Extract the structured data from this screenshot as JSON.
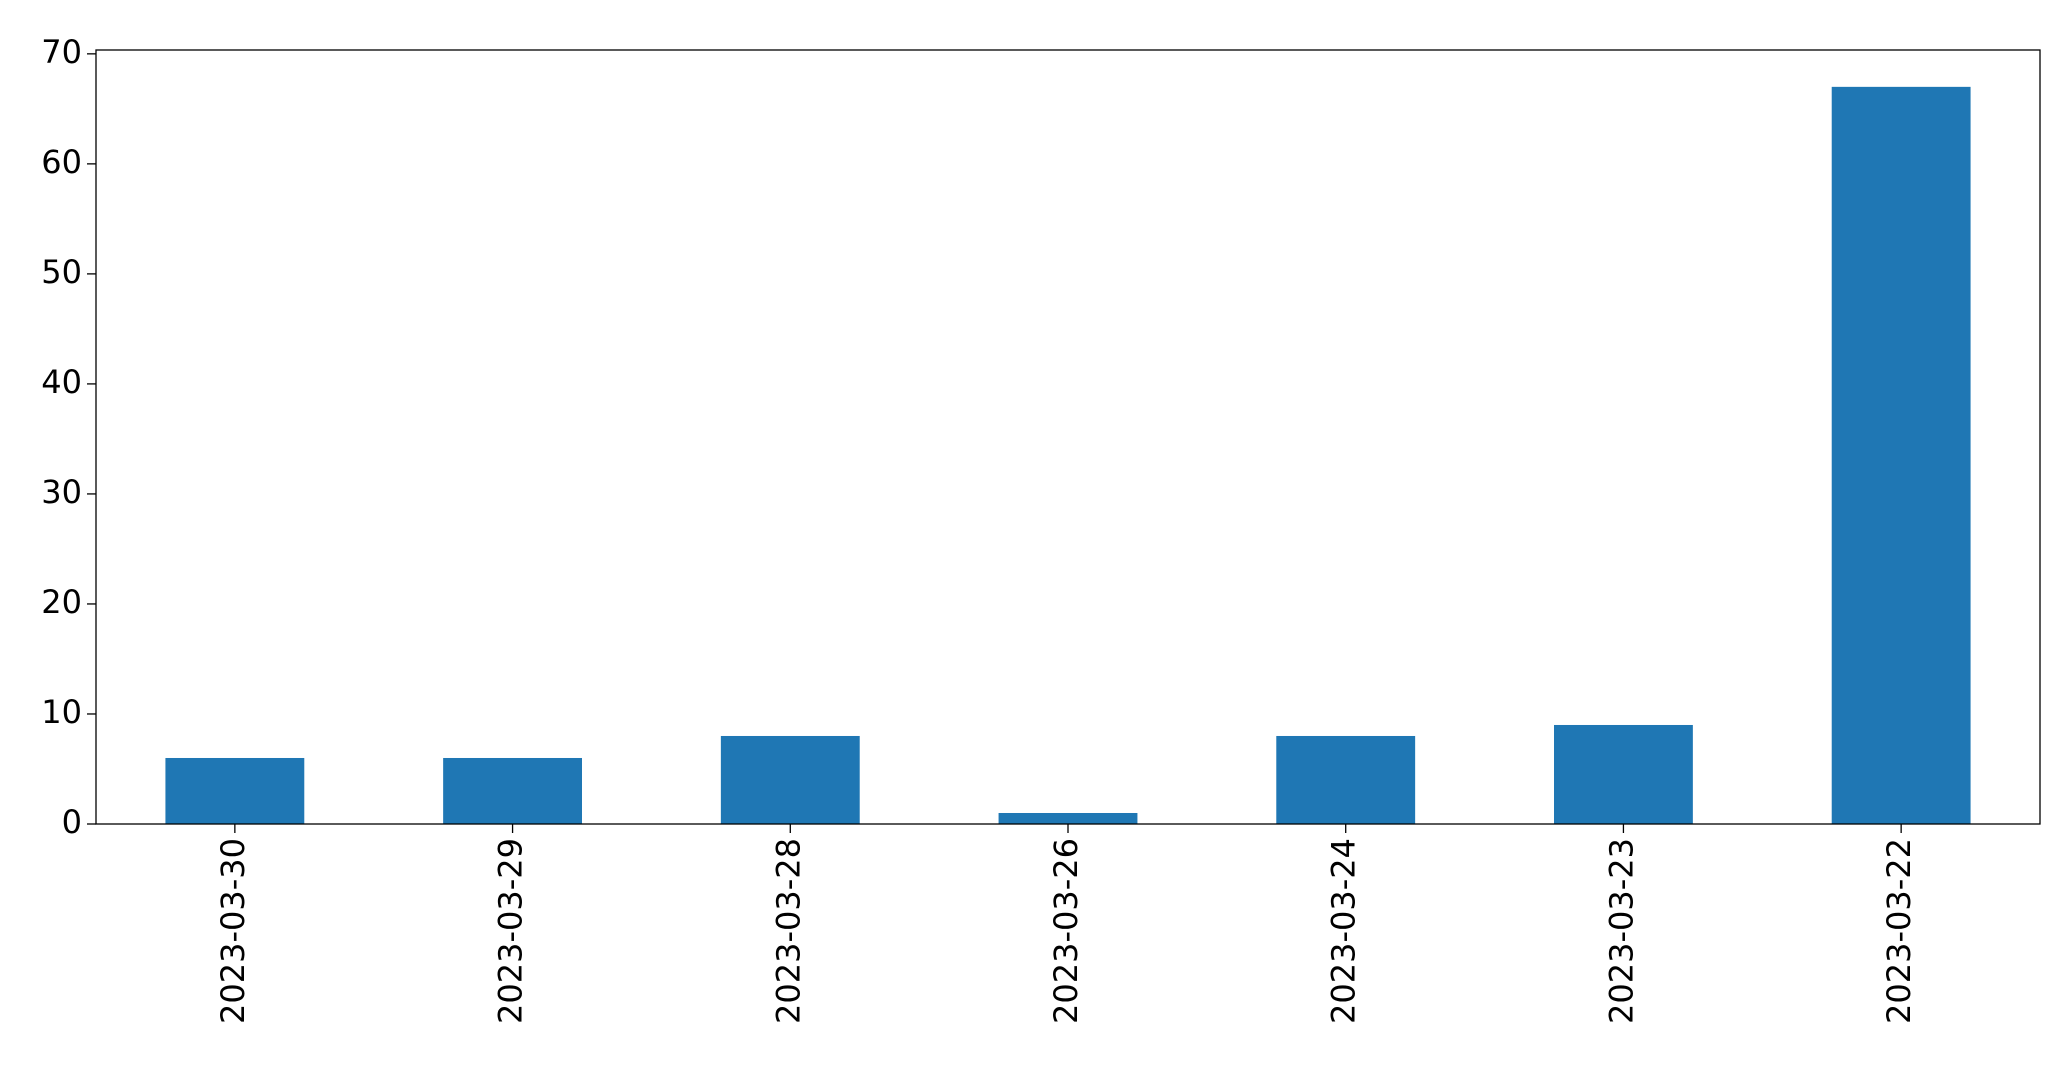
{
  "chart_data": {
    "type": "bar",
    "categories": [
      "2023-03-30",
      "2023-03-29",
      "2023-03-28",
      "2023-03-26",
      "2023-03-24",
      "2023-03-23",
      "2023-03-22"
    ],
    "values": [
      6,
      6,
      8,
      1,
      8,
      9,
      67
    ],
    "color": "#1f77b4",
    "ylim": [
      0,
      70.35
    ],
    "yticks": [
      0,
      10,
      20,
      30,
      40,
      50,
      60,
      70
    ],
    "grid": false
  }
}
